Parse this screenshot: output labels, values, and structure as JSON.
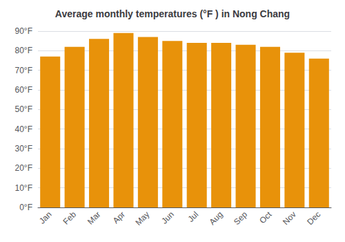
{
  "chart_data": {
    "type": "bar",
    "title": "Average monthly temperatures (°F ) in Nong Chang",
    "categories": [
      "Jan",
      "Feb",
      "Mar",
      "Apr",
      "May",
      "Jun",
      "Jul",
      "Aug",
      "Sep",
      "Oct",
      "Nov",
      "Dec"
    ],
    "values": [
      77,
      82,
      86,
      89,
      87,
      85,
      84,
      84,
      83,
      82,
      79,
      76
    ],
    "color": "#E8920A",
    "ylim": [
      0,
      90
    ],
    "yticks": [
      {
        "value": 0,
        "label": "0°F"
      },
      {
        "value": 10,
        "label": "10°F"
      },
      {
        "value": 20,
        "label": "20°F"
      },
      {
        "value": 30,
        "label": "30°F"
      },
      {
        "value": 40,
        "label": "40°F"
      },
      {
        "value": 50,
        "label": "50°F"
      },
      {
        "value": 60,
        "label": "60°F"
      },
      {
        "value": 70,
        "label": "70°F"
      },
      {
        "value": 80,
        "label": "80°F"
      },
      {
        "value": 90,
        "label": "90°F"
      }
    ],
    "grid": true
  }
}
